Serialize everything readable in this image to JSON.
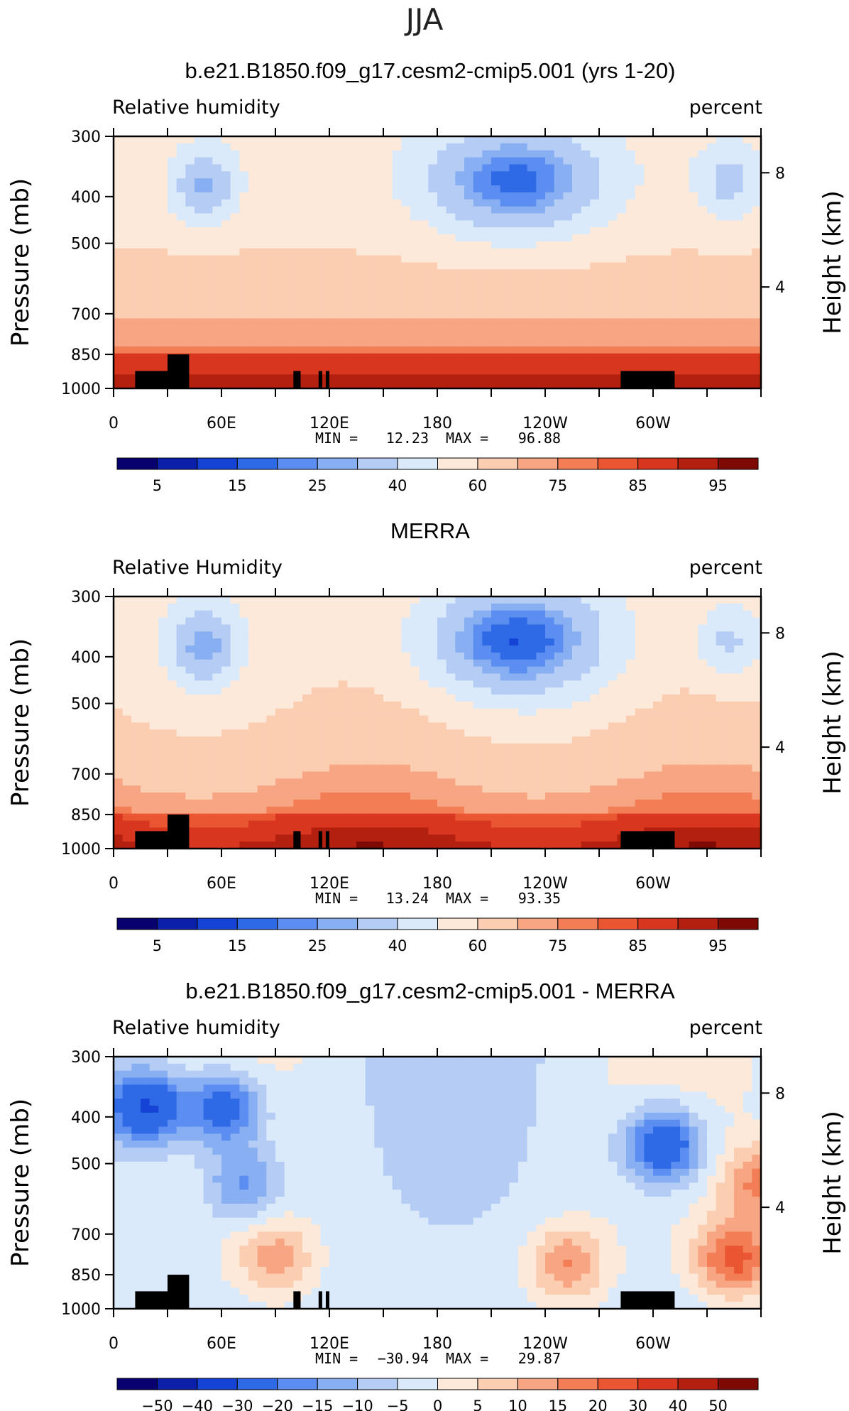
{
  "figure": {
    "season": "JJA"
  },
  "colors": {
    "abs_scale": [
      "#08006e",
      "#0c1fa8",
      "#1443d6",
      "#2f6ae6",
      "#5b8ef0",
      "#88aff2",
      "#b5cdf5",
      "#daeafa",
      "#fde9d9",
      "#fbcdb1",
      "#f7a583",
      "#f37e56",
      "#ea5532",
      "#d8361f",
      "#b3200f",
      "#7d0a05"
    ],
    "diff_scale": [
      "#08006e",
      "#0c1fa8",
      "#1443d6",
      "#2f6ae6",
      "#5b8ef0",
      "#88aff2",
      "#b5cdf5",
      "#daeafa",
      "#fde9d9",
      "#fbcdb1",
      "#f7a583",
      "#f37e56",
      "#ea5532",
      "#d8361f",
      "#b3200f",
      "#7d0a05"
    ],
    "topography": "#000000"
  },
  "chart_data": [
    {
      "type": "heatmap",
      "title": "b.e21.B1850.f09_g17.cesm2-cmip5.001 (yrs 1-20)",
      "left_label": "Relative humidity",
      "right_label": "percent",
      "ylabel": "Pressure (mb)",
      "ylabel_right": "Height (km)",
      "y_ticks": [
        "300",
        "400",
        "500",
        "700",
        "850",
        "1000"
      ],
      "y_values": [
        300,
        400,
        500,
        700,
        850,
        1000
      ],
      "yr_ticks": [
        "8",
        "4"
      ],
      "x_ticks": [
        "0",
        "60E",
        "120E",
        "180",
        "120W",
        "60W"
      ],
      "x_values": [
        0,
        60,
        120,
        180,
        240,
        300
      ],
      "xlim": [
        0,
        360
      ],
      "ylim": [
        1000,
        300
      ],
      "min_label": "MIN =",
      "min": "12.23",
      "max_label": "MAX =",
      "max": "96.88",
      "colorbar_levels": [
        5,
        10,
        15,
        20,
        25,
        30,
        40,
        50,
        60,
        70,
        75,
        80,
        85,
        90,
        95
      ],
      "colorbar_labels": [
        "5",
        "15",
        "25",
        "40",
        "60",
        "75",
        "85",
        "95"
      ],
      "scale": "abs"
    },
    {
      "type": "heatmap",
      "title": "MERRA",
      "left_label": "Relative Humidity",
      "right_label": "percent",
      "ylabel": "Pressure (mb)",
      "ylabel_right": "Height (km)",
      "y_ticks": [
        "300",
        "400",
        "500",
        "700",
        "850",
        "1000"
      ],
      "y_values": [
        300,
        400,
        500,
        700,
        850,
        1000
      ],
      "yr_ticks": [
        "8",
        "4"
      ],
      "x_ticks": [
        "0",
        "60E",
        "120E",
        "180",
        "120W",
        "60W"
      ],
      "x_values": [
        0,
        60,
        120,
        180,
        240,
        300
      ],
      "xlim": [
        0,
        360
      ],
      "ylim": [
        1000,
        300
      ],
      "min_label": "MIN =",
      "min": "13.24",
      "max_label": "MAX =",
      "max": "93.35",
      "colorbar_levels": [
        5,
        10,
        15,
        20,
        25,
        30,
        40,
        50,
        60,
        70,
        75,
        80,
        85,
        90,
        95
      ],
      "colorbar_labels": [
        "5",
        "15",
        "25",
        "40",
        "60",
        "75",
        "85",
        "95"
      ],
      "scale": "abs"
    },
    {
      "type": "heatmap",
      "title": "b.e21.B1850.f09_g17.cesm2-cmip5.001 - MERRA",
      "left_label": "Relative humidity",
      "right_label": "percent",
      "ylabel": "Pressure (mb)",
      "ylabel_right": "Height (km)",
      "y_ticks": [
        "300",
        "400",
        "500",
        "700",
        "850",
        "1000"
      ],
      "y_values": [
        300,
        400,
        500,
        700,
        850,
        1000
      ],
      "yr_ticks": [
        "8",
        "4"
      ],
      "x_ticks": [
        "0",
        "60E",
        "120E",
        "180",
        "120W",
        "60W"
      ],
      "x_values": [
        0,
        60,
        120,
        180,
        240,
        300
      ],
      "xlim": [
        0,
        360
      ],
      "ylim": [
        1000,
        300
      ],
      "min_label": "MIN =",
      "min": "−30.94",
      "max_label": "MAX =",
      "max": "29.87",
      "colorbar_levels": [
        -50,
        -40,
        -30,
        -20,
        -15,
        -10,
        -5,
        0,
        5,
        10,
        15,
        20,
        30,
        40,
        50
      ],
      "colorbar_labels": [
        "−50",
        "−40",
        "−30",
        "−20",
        "−15",
        "−10",
        "−5",
        "0",
        "5",
        "10",
        "15",
        "20",
        "30",
        "40",
        "50"
      ],
      "scale": "diff"
    }
  ]
}
